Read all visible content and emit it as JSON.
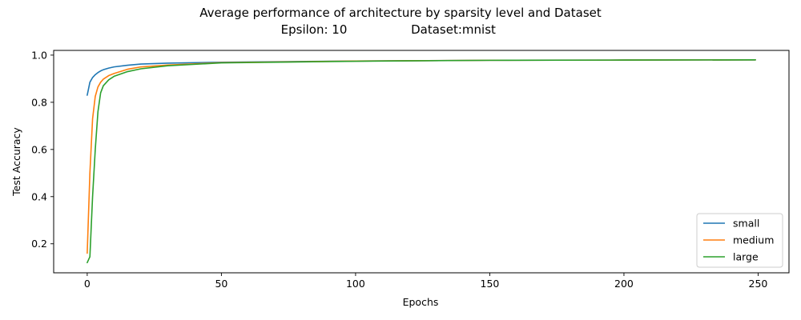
{
  "chart_data": {
    "type": "line",
    "title": "Average performance of architecture by sparsity level and Dataset",
    "subtitle_parts": [
      "Epsilon: 10",
      "Dataset:mnist"
    ],
    "xlabel": "Epochs",
    "ylabel": "Test Accuracy",
    "xlim": [
      -12.5,
      261.5
    ],
    "ylim": [
      0.077,
      1.02
    ],
    "xticks": [
      0,
      50,
      100,
      150,
      200,
      250
    ],
    "yticks": [
      0.2,
      0.4,
      0.6,
      0.8,
      1.0
    ],
    "ytick_labels": [
      "0.2",
      "0.4",
      "0.6",
      "0.8",
      "1.0"
    ],
    "grid": false,
    "legend_position": "lower-right",
    "series": [
      {
        "name": "small",
        "color": "#1f77b4",
        "x": [
          0,
          1,
          2,
          3,
          4,
          5,
          6,
          8,
          10,
          15,
          20,
          30,
          50,
          100,
          150,
          200,
          249
        ],
        "y": [
          0.83,
          0.885,
          0.905,
          0.917,
          0.926,
          0.933,
          0.938,
          0.945,
          0.95,
          0.957,
          0.962,
          0.966,
          0.97,
          0.975,
          0.978,
          0.979,
          0.98
        ]
      },
      {
        "name": "medium",
        "color": "#ff7f0e",
        "x": [
          0,
          1,
          2,
          3,
          4,
          5,
          6,
          8,
          10,
          15,
          20,
          30,
          50,
          100,
          150,
          200,
          249
        ],
        "y": [
          0.16,
          0.5,
          0.73,
          0.825,
          0.865,
          0.885,
          0.898,
          0.913,
          0.922,
          0.94,
          0.95,
          0.958,
          0.968,
          0.975,
          0.978,
          0.979,
          0.98
        ]
      },
      {
        "name": "large",
        "color": "#2ca02c",
        "x": [
          0,
          1,
          2,
          3,
          4,
          5,
          6,
          8,
          10,
          15,
          20,
          30,
          50,
          100,
          150,
          200,
          249
        ],
        "y": [
          0.12,
          0.145,
          0.4,
          0.6,
          0.76,
          0.84,
          0.87,
          0.895,
          0.91,
          0.93,
          0.942,
          0.955,
          0.967,
          0.974,
          0.978,
          0.979,
          0.98
        ]
      }
    ]
  }
}
